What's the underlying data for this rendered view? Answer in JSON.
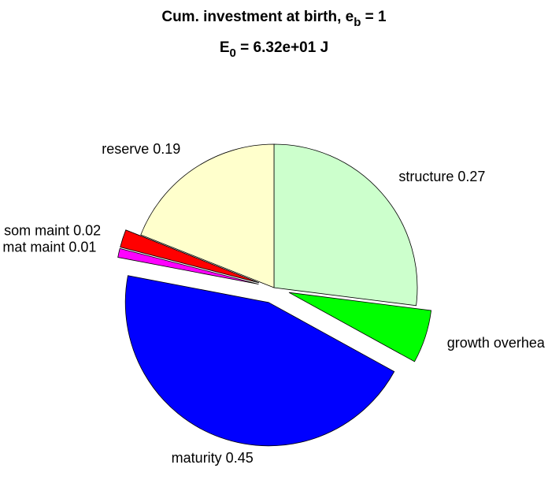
{
  "chart_data": {
    "type": "pie",
    "title": {
      "text": "Cum. investment at birth, e",
      "sub": "b",
      "after": " = 1"
    },
    "subtitle": {
      "text": "E",
      "sub": "0",
      "after": " = 6.32e+01 J"
    },
    "categories": [
      "structure",
      "growth overhead",
      "maturity",
      "mat maint",
      "som maint",
      "reserve"
    ],
    "labels": [
      "structure 0.27",
      "growth overhea",
      "maturity 0.45",
      "mat maint 0.01",
      "som maint 0.02",
      "reserve 0.19"
    ],
    "values": [
      0.27,
      0.06,
      0.45,
      0.01,
      0.02,
      0.19
    ],
    "colors": [
      "#ccffcc",
      "#00ff00",
      "#0000ff",
      "#ff00ff",
      "#ff0000",
      "#ffffcc"
    ],
    "explode": [
      false,
      true,
      true,
      true,
      true,
      false
    ]
  }
}
